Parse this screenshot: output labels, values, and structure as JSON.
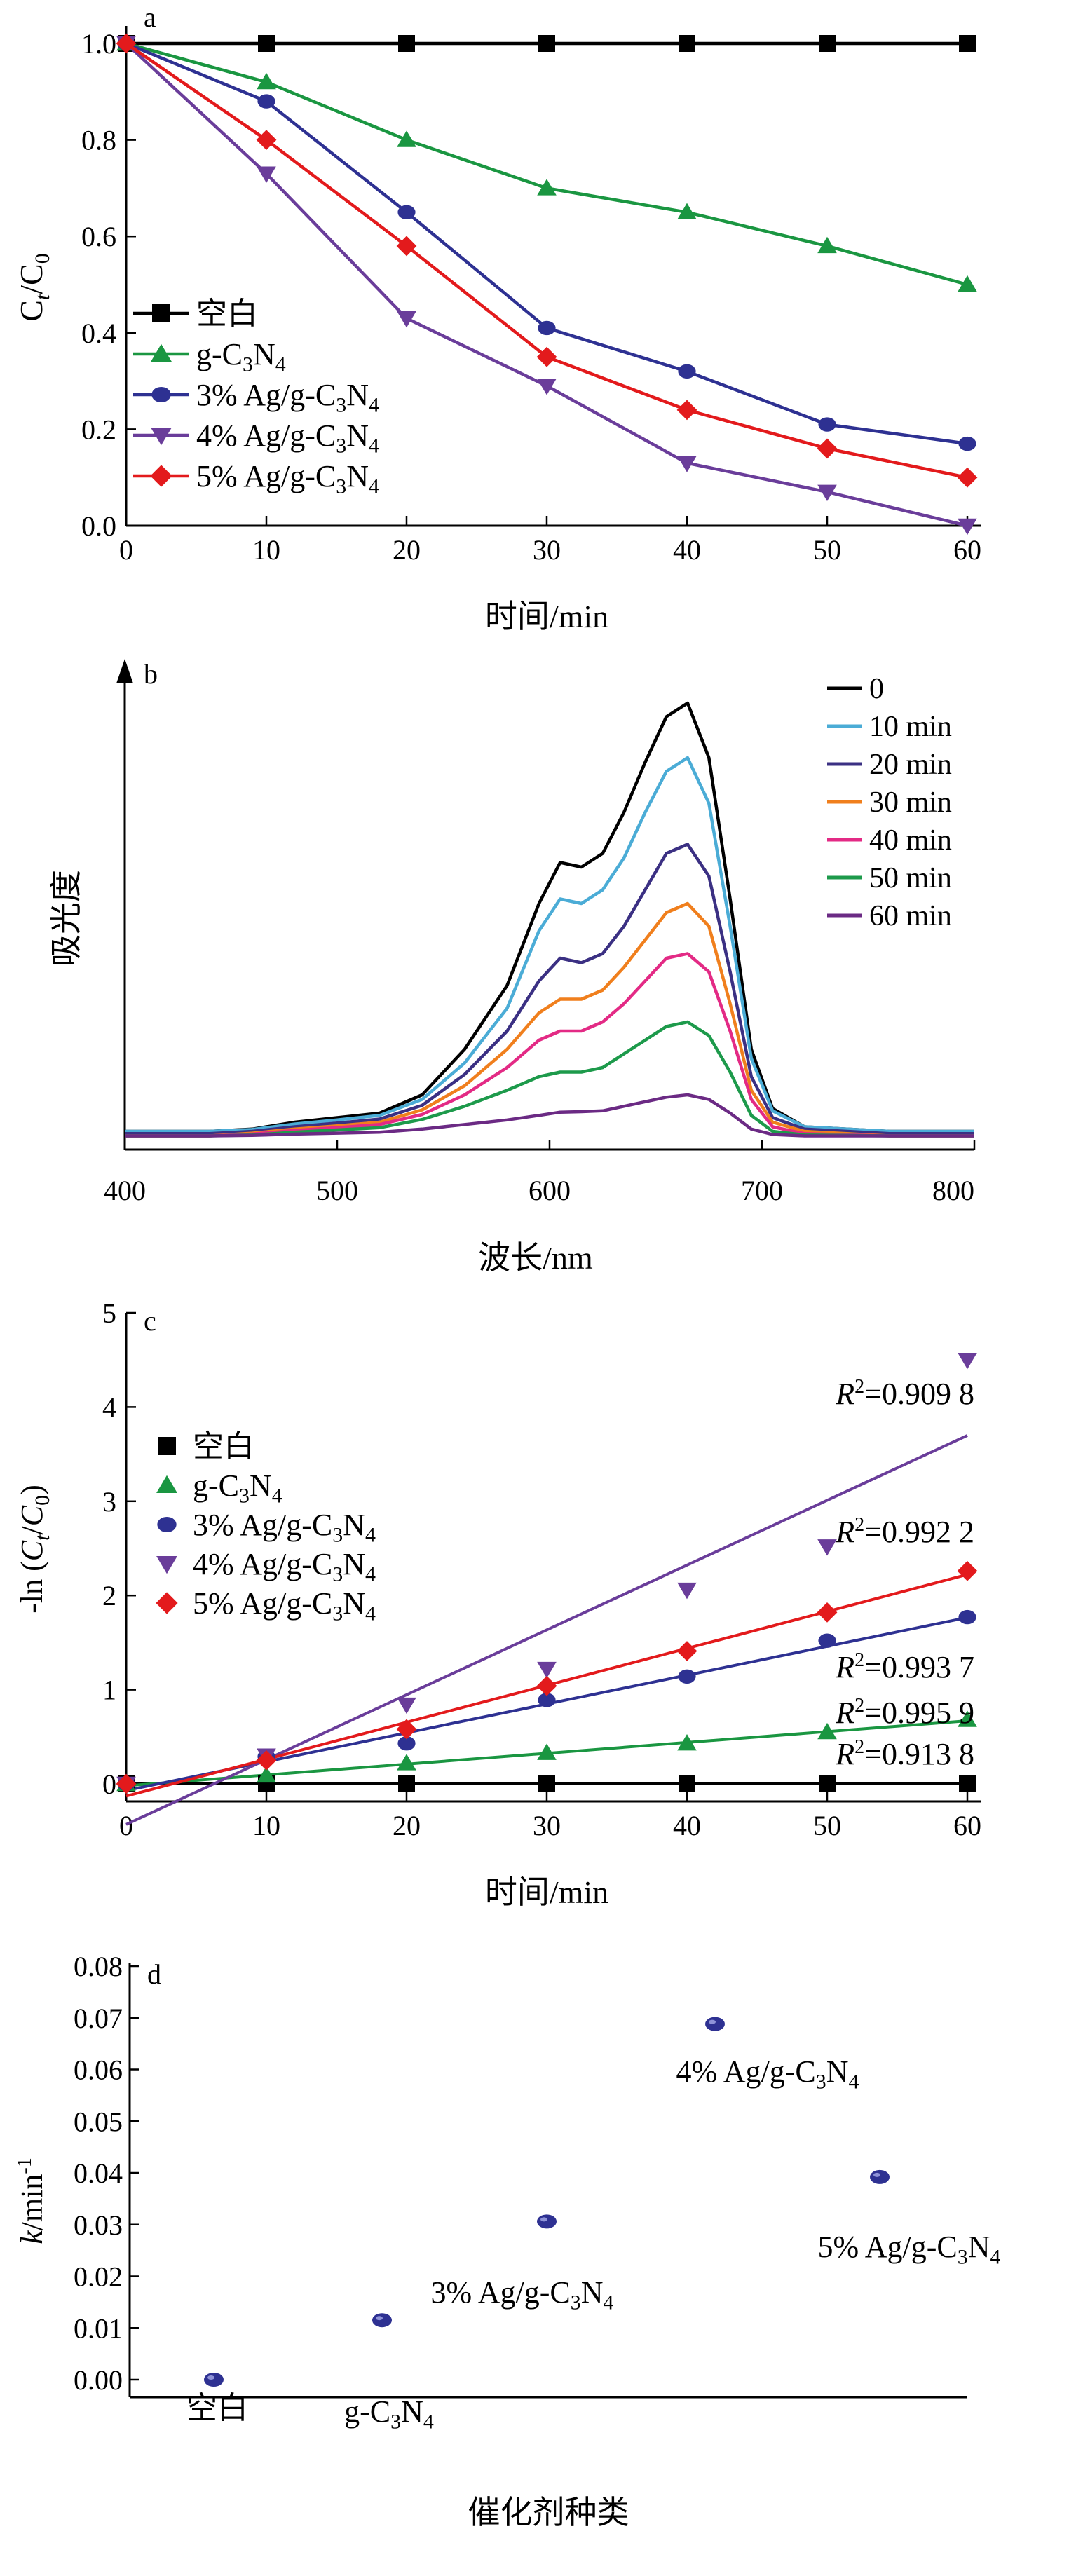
{
  "chart_data": [
    {
      "panel": "a",
      "type": "line",
      "xlabel": "时间/min",
      "ylabel": "Ct/C0",
      "xlim": [
        0,
        60
      ],
      "ylim": [
        0,
        1.0
      ],
      "xticks": [
        0,
        10,
        20,
        30,
        40,
        50,
        60
      ],
      "yticks": [
        0.0,
        0.2,
        0.4,
        0.6,
        0.8,
        1.0
      ],
      "ytick_labels": [
        "0.0",
        "0.2",
        "0.4",
        "0.6",
        "0.8",
        "1.0"
      ],
      "legend_position": "left",
      "x": [
        0,
        10,
        20,
        30,
        40,
        50,
        60
      ],
      "series": [
        {
          "name": "空白",
          "color": "#000000",
          "marker": "square",
          "values": [
            1.0,
            1.0,
            1.0,
            1.0,
            1.0,
            1.0,
            1.0
          ]
        },
        {
          "name": "g-C3N4",
          "color": "#1a9641",
          "marker": "triangle-up",
          "values": [
            1.0,
            0.92,
            0.8,
            0.7,
            0.65,
            0.58,
            0.5
          ]
        },
        {
          "name": "3% Ag/g-C3N4",
          "color": "#2e3192",
          "marker": "circle",
          "values": [
            1.0,
            0.88,
            0.65,
            0.41,
            0.32,
            0.21,
            0.17
          ]
        },
        {
          "name": "4% Ag/g-C3N4",
          "color": "#6a3d9a",
          "marker": "triangle-down",
          "values": [
            1.0,
            0.73,
            0.43,
            0.29,
            0.13,
            0.07,
            0.0
          ]
        },
        {
          "name": "5% Ag/g-C3N4",
          "color": "#e31a1c",
          "marker": "diamond",
          "values": [
            1.0,
            0.8,
            0.58,
            0.35,
            0.24,
            0.16,
            0.1
          ]
        }
      ]
    },
    {
      "panel": "b",
      "type": "line",
      "xlabel": "波长/nm",
      "ylabel": "吸光度",
      "xlim": [
        400,
        800
      ],
      "ylim": [
        0,
        1.0
      ],
      "xticks": [
        400,
        500,
        600,
        700,
        800
      ],
      "legend_position": "top-right",
      "x": [
        400,
        440,
        460,
        480,
        500,
        520,
        540,
        560,
        580,
        595,
        605,
        615,
        625,
        635,
        645,
        655,
        665,
        675,
        685,
        695,
        705,
        720,
        760,
        800
      ],
      "series": [
        {
          "name": "0",
          "color": "#000000",
          "values": [
            0.04,
            0.04,
            0.045,
            0.06,
            0.07,
            0.08,
            0.12,
            0.22,
            0.36,
            0.54,
            0.63,
            0.62,
            0.65,
            0.74,
            0.85,
            0.95,
            0.98,
            0.86,
            0.55,
            0.22,
            0.09,
            0.05,
            0.04,
            0.04
          ]
        },
        {
          "name": "10 min",
          "color": "#4bacd6",
          "values": [
            0.04,
            0.04,
            0.044,
            0.056,
            0.065,
            0.075,
            0.11,
            0.19,
            0.31,
            0.48,
            0.55,
            0.54,
            0.57,
            0.64,
            0.74,
            0.83,
            0.86,
            0.76,
            0.49,
            0.2,
            0.085,
            0.05,
            0.04,
            0.04
          ]
        },
        {
          "name": "20 min",
          "color": "#3b3083",
          "values": [
            0.035,
            0.035,
            0.04,
            0.05,
            0.058,
            0.067,
            0.097,
            0.165,
            0.26,
            0.37,
            0.42,
            0.41,
            0.43,
            0.49,
            0.57,
            0.65,
            0.67,
            0.6,
            0.39,
            0.16,
            0.07,
            0.045,
            0.035,
            0.035
          ]
        },
        {
          "name": "30 min",
          "color": "#f07f1d",
          "values": [
            0.03,
            0.03,
            0.036,
            0.045,
            0.052,
            0.06,
            0.087,
            0.14,
            0.22,
            0.3,
            0.33,
            0.33,
            0.35,
            0.4,
            0.46,
            0.52,
            0.54,
            0.49,
            0.32,
            0.13,
            0.06,
            0.04,
            0.03,
            0.03
          ]
        },
        {
          "name": "40 min",
          "color": "#e32a85",
          "values": [
            0.03,
            0.03,
            0.034,
            0.042,
            0.048,
            0.055,
            0.077,
            0.12,
            0.18,
            0.24,
            0.26,
            0.26,
            0.28,
            0.32,
            0.37,
            0.42,
            0.43,
            0.39,
            0.26,
            0.11,
            0.05,
            0.035,
            0.03,
            0.03
          ]
        },
        {
          "name": "50 min",
          "color": "#1d9a4b",
          "values": [
            0.03,
            0.03,
            0.032,
            0.038,
            0.043,
            0.048,
            0.066,
            0.095,
            0.13,
            0.16,
            0.17,
            0.17,
            0.18,
            0.21,
            0.24,
            0.27,
            0.28,
            0.25,
            0.17,
            0.075,
            0.04,
            0.032,
            0.03,
            0.03
          ]
        },
        {
          "name": "60 min",
          "color": "#6b2a84",
          "values": [
            0.03,
            0.03,
            0.031,
            0.034,
            0.036,
            0.038,
            0.045,
            0.055,
            0.065,
            0.075,
            0.082,
            0.083,
            0.085,
            0.095,
            0.105,
            0.115,
            0.12,
            0.11,
            0.08,
            0.045,
            0.033,
            0.03,
            0.03,
            0.03
          ]
        }
      ]
    },
    {
      "panel": "c",
      "type": "scatter",
      "xlabel": "时间/min",
      "ylabel": "-ln (Ct/C0)",
      "xlim": [
        0,
        60
      ],
      "ylim": [
        0,
        5
      ],
      "xticks": [
        0,
        10,
        20,
        30,
        40,
        50,
        60
      ],
      "yticks": [
        0,
        1,
        2,
        3,
        4,
        5
      ],
      "legend_position": "left",
      "x": [
        0,
        10,
        20,
        30,
        40,
        50,
        60
      ],
      "series": [
        {
          "name": "空白",
          "color": "#000000",
          "marker": "square",
          "values": [
            0,
            0,
            0,
            0,
            0,
            0,
            0
          ],
          "fit": [
            0,
            0
          ],
          "r2": "R2=0.913 8"
        },
        {
          "name": "g-C3N4",
          "color": "#1a9641",
          "marker": "triangle-up",
          "values": [
            0,
            0.09,
            0.22,
            0.33,
            0.43,
            0.55,
            0.68
          ],
          "fit": [
            -0.02,
            0.0115
          ],
          "r2": "R2=0.995 9"
        },
        {
          "name": "3% Ag/g-C3N4",
          "color": "#2e3192",
          "marker": "circle",
          "values": [
            0,
            0.29,
            0.43,
            0.89,
            1.14,
            1.52,
            1.77
          ],
          "fit": [
            -0.07,
            0.0306
          ],
          "r2": "R2=0.993 7"
        },
        {
          "name": "4% Ag/g-C3N4",
          "color": "#6a3d9a",
          "marker": "triangle-down",
          "values": [
            0,
            0.3,
            0.84,
            1.22,
            2.06,
            2.52,
            4.5
          ],
          "fit": [
            -0.43,
            0.0688
          ],
          "r2": "R2=0.909 8"
        },
        {
          "name": "5% Ag/g-C3N4",
          "color": "#e31a1c",
          "marker": "diamond",
          "values": [
            0,
            0.25,
            0.58,
            1.04,
            1.41,
            1.82,
            2.26
          ],
          "fit": [
            -0.13,
            0.0392
          ],
          "r2": "R2=0.992 2"
        }
      ]
    },
    {
      "panel": "d",
      "type": "scatter",
      "xlabel": "催化剂种类",
      "ylabel": "k/min-1",
      "ylim": [
        0,
        0.08
      ],
      "yticks": [
        0.0,
        0.01,
        0.02,
        0.03,
        0.04,
        0.05,
        0.06,
        0.07,
        0.08
      ],
      "ytick_labels": [
        "0.00",
        "0.01",
        "0.02",
        "0.03",
        "0.04",
        "0.05",
        "0.06",
        "0.07",
        "0.08"
      ],
      "point_color": "#2e3192",
      "categories": [
        "空白",
        "g-C3N4",
        "3% Ag/g-C3N4",
        "4% Ag/g-C3N4",
        "5% Ag/g-C3N4"
      ],
      "values": [
        0.0,
        0.0115,
        0.0306,
        0.0688,
        0.0392
      ]
    }
  ]
}
